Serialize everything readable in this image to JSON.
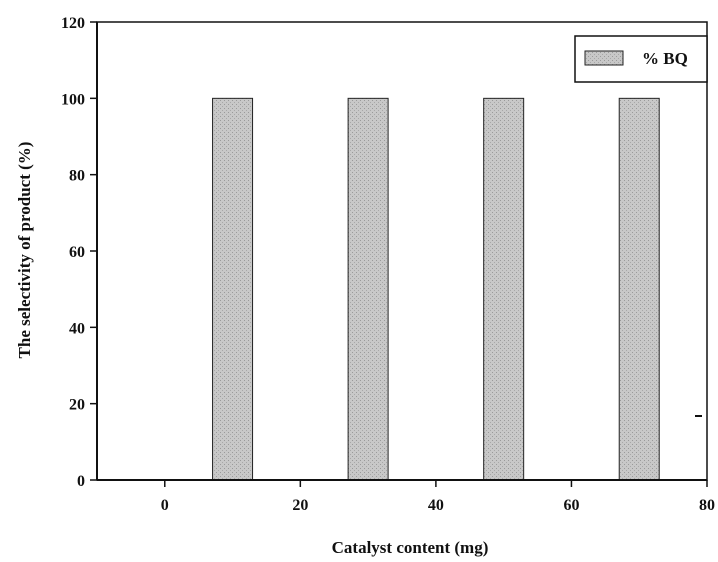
{
  "chart_data": {
    "type": "bar",
    "xlabel": "Catalyst content (mg)",
    "ylabel": "The selectivity of product (%)",
    "x": [
      10,
      30,
      50,
      70
    ],
    "series": [
      {
        "name": "% BQ",
        "values": [
          100,
          100,
          100,
          100
        ]
      }
    ],
    "xlim": [
      -10,
      80
    ],
    "ylim": [
      0,
      120
    ],
    "xticks": [
      0,
      20,
      40,
      60,
      80
    ],
    "yticks": [
      0,
      20,
      40,
      60,
      80,
      100,
      120
    ],
    "xtick_labels": [
      "0",
      "20",
      "40",
      "60",
      "80"
    ],
    "ytick_labels": [
      "0",
      "20",
      "40",
      "60",
      "80",
      "100",
      "120"
    ],
    "grid": false,
    "legend_position": "top-right",
    "colors": {
      "bar_fill": "#c8c8c8",
      "bar_stroke": "#222222",
      "axis": "#111111"
    }
  }
}
